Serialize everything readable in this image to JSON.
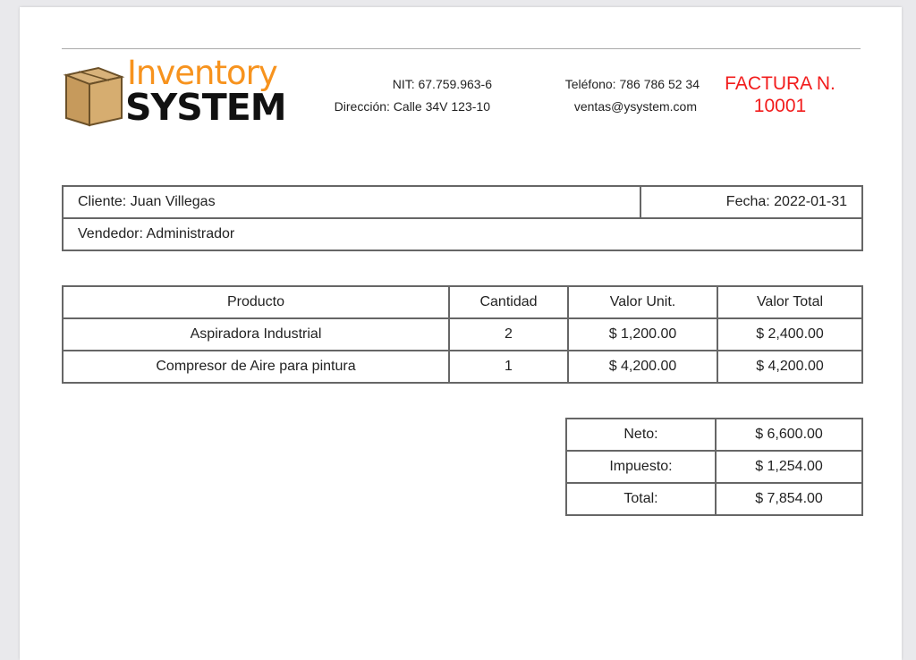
{
  "company": {
    "brand_top": "Inventory",
    "brand_bottom": "SYSTEM",
    "nit": "NIT: 67.759.963-6",
    "direccion": "Dirección: Calle 34V 123-10",
    "telefono": "Teléfono: 786 786 52 34",
    "email": "ventas@ysystem.com"
  },
  "invoice": {
    "label": "FACTURA N.",
    "number": "10001",
    "color": "#f21c1c"
  },
  "client": {
    "cliente": "Cliente: Juan Villegas",
    "fecha": "Fecha: 2022-01-31",
    "vendedor": "Vendedor: Administrador"
  },
  "products": {
    "headers": [
      "Producto",
      "Cantidad",
      "Valor Unit.",
      "Valor Total"
    ],
    "rows": [
      [
        "Aspiradora Industrial",
        "2",
        "$ 1,200.00",
        "$ 2,400.00"
      ],
      [
        "Compresor de Aire para pintura",
        "1",
        "$ 4,200.00",
        "$ 4,200.00"
      ]
    ]
  },
  "totals": [
    [
      "Neto:",
      "$ 6,600.00"
    ],
    [
      "Impuesto:",
      "$ 1,254.00"
    ],
    [
      "Total:",
      "$ 7,854.00"
    ]
  ]
}
